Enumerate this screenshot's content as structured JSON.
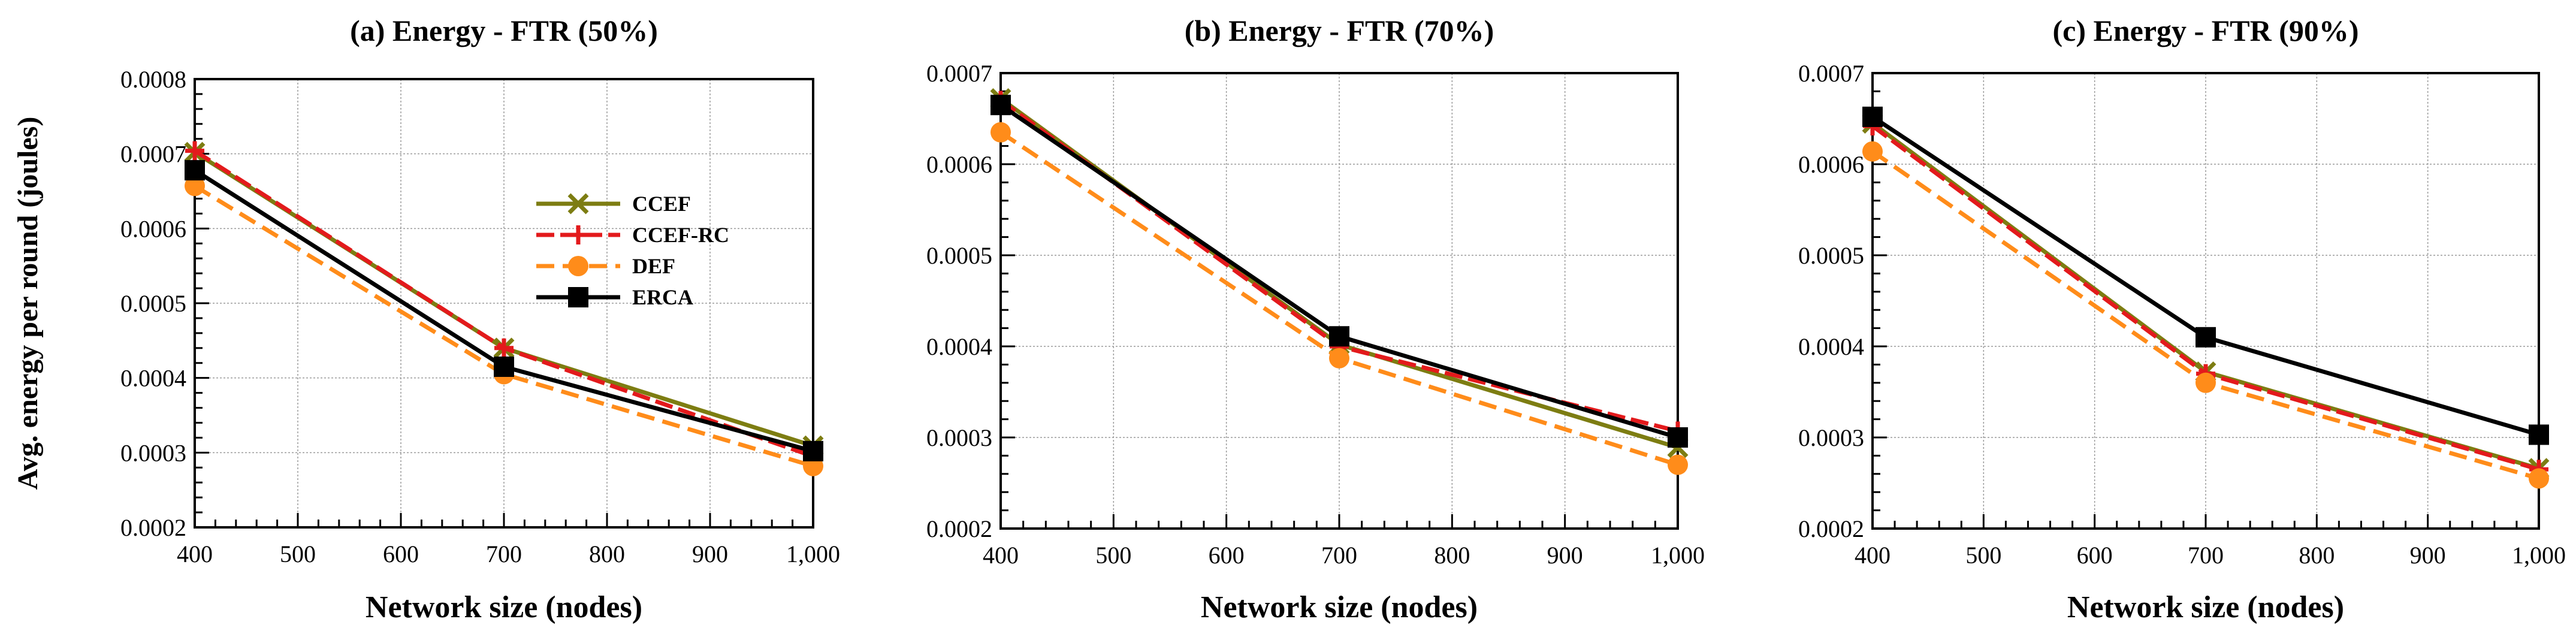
{
  "colors": {
    "CCEF": "#7d7d12",
    "CCEF-RC": "#e31a1c",
    "DEF": "#ff8c1a",
    "ERCA": "#000000"
  },
  "chart_data": [
    {
      "type": "line",
      "title": "(a) Energy - FTR (50%)",
      "xlabel": "Network size (nodes)",
      "ylabel": "Avg. energy per round (joules)",
      "x": [
        400,
        700,
        1000
      ],
      "xlim": [
        400,
        1000
      ],
      "xticks": [
        400,
        500,
        600,
        700,
        800,
        900,
        1000
      ],
      "xtick_labels": [
        "400",
        "500",
        "600",
        "700",
        "800",
        "900",
        "1,000"
      ],
      "ylim": [
        0.0002,
        0.0008
      ],
      "yticks": [
        0.0002,
        0.0003,
        0.0004,
        0.0005,
        0.0006,
        0.0007,
        0.0008
      ],
      "ytick_labels": [
        "0.0002",
        "0.0003",
        "0.0004",
        "0.0005",
        "0.0006",
        "0.0007",
        "0.0008"
      ],
      "legend": "upper-center",
      "series": [
        {
          "name": "CCEF",
          "values": [
            0.000702,
            0.00044,
            0.000309
          ]
        },
        {
          "name": "CCEF-RC",
          "values": [
            0.000704,
            0.00044,
            0.000295
          ]
        },
        {
          "name": "DEF",
          "values": [
            0.000657,
            0.000405,
            0.000282
          ]
        },
        {
          "name": "ERCA",
          "values": [
            0.000678,
            0.000415,
            0.000302
          ]
        }
      ]
    },
    {
      "type": "line",
      "title": "(b) Energy - FTR (70%)",
      "xlabel": "Network size (nodes)",
      "ylabel": "",
      "x": [
        400,
        700,
        1000
      ],
      "xlim": [
        400,
        1000
      ],
      "xticks": [
        400,
        500,
        600,
        700,
        800,
        900,
        1000
      ],
      "xtick_labels": [
        "400",
        "500",
        "600",
        "700",
        "800",
        "900",
        "1,000"
      ],
      "ylim": [
        0.0002,
        0.0007
      ],
      "yticks": [
        0.0002,
        0.0003,
        0.0004,
        0.0005,
        0.0006,
        0.0007
      ],
      "ytick_labels": [
        "0.0002",
        "0.0003",
        "0.0004",
        "0.0005",
        "0.0006",
        "0.0007"
      ],
      "series": [
        {
          "name": "CCEF",
          "values": [
            0.000672,
            0.000402,
            0.000289
          ]
        },
        {
          "name": "CCEF-RC",
          "values": [
            0.00067,
            0.0004,
            0.000307
          ]
        },
        {
          "name": "DEF",
          "values": [
            0.000635,
            0.000387,
            0.00027
          ]
        },
        {
          "name": "ERCA",
          "values": [
            0.000665,
            0.000411,
            0.0003
          ]
        }
      ]
    },
    {
      "type": "line",
      "title": "(c) Energy - FTR (90%)",
      "xlabel": "Network size (nodes)",
      "ylabel": "",
      "x": [
        400,
        700,
        1000
      ],
      "xlim": [
        400,
        1000
      ],
      "xticks": [
        400,
        500,
        600,
        700,
        800,
        900,
        1000
      ],
      "xtick_labels": [
        "400",
        "500",
        "600",
        "700",
        "800",
        "900",
        "1,000"
      ],
      "ylim": [
        0.0002,
        0.0007
      ],
      "yticks": [
        0.0002,
        0.0003,
        0.0004,
        0.0005,
        0.0006,
        0.0007
      ],
      "ytick_labels": [
        "0.0002",
        "0.0003",
        "0.0004",
        "0.0005",
        "0.0006",
        "0.0007"
      ],
      "series": [
        {
          "name": "CCEF",
          "values": [
            0.000645,
            0.000372,
            0.000266
          ]
        },
        {
          "name": "CCEF-RC",
          "values": [
            0.000642,
            0.00037,
            0.000265
          ]
        },
        {
          "name": "DEF",
          "values": [
            0.000614,
            0.00036,
            0.000255
          ]
        },
        {
          "name": "ERCA",
          "values": [
            0.000652,
            0.00041,
            0.000303
          ]
        }
      ]
    }
  ]
}
